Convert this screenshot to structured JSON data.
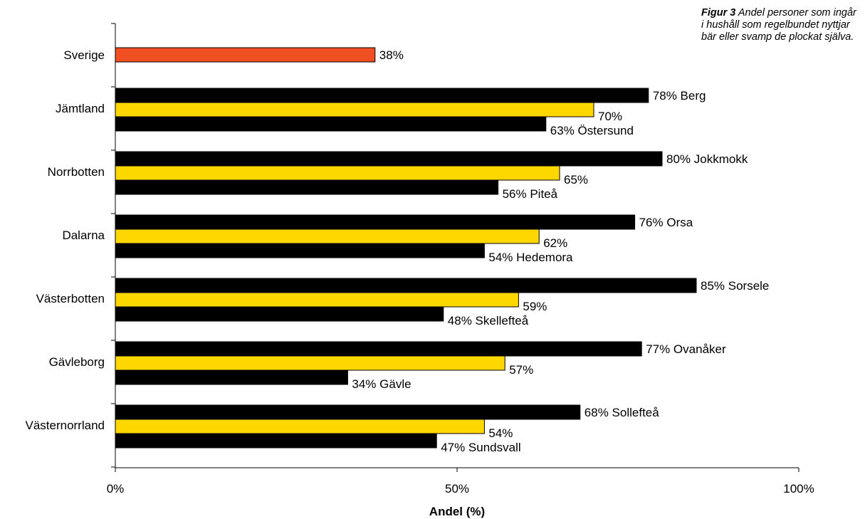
{
  "caption": {
    "label": "Figur 3",
    "text": "Andel personer som ingår i hushåll som regelbundet nyttjar bär eller svamp de plockat själva."
  },
  "chart_data": {
    "type": "bar",
    "orientation": "horizontal",
    "xlabel": "Andel (%)",
    "xlim": [
      0,
      100
    ],
    "x_ticks": [
      "0%",
      "50%",
      "100%"
    ],
    "colors": {
      "national": "#f04e23",
      "max": "#000000",
      "mean": "#ffd700",
      "min": "#000000"
    },
    "national": {
      "category": "Sverige",
      "value": 38,
      "label": "38%"
    },
    "groups": [
      {
        "category": "Jämtland",
        "bars": [
          {
            "value": 78,
            "label": "78% Berg"
          },
          {
            "value": 70,
            "label": "70%"
          },
          {
            "value": 63,
            "label": "63% Östersund"
          }
        ]
      },
      {
        "category": "Norrbotten",
        "bars": [
          {
            "value": 80,
            "label": "80% Jokkmokk"
          },
          {
            "value": 65,
            "label": "65%"
          },
          {
            "value": 56,
            "label": "56% Piteå"
          }
        ]
      },
      {
        "category": "Dalarna",
        "bars": [
          {
            "value": 76,
            "label": "76% Orsa"
          },
          {
            "value": 62,
            "label": "62%"
          },
          {
            "value": 54,
            "label": "54% Hedemora"
          }
        ]
      },
      {
        "category": "Västerbotten",
        "bars": [
          {
            "value": 85,
            "label": "85% Sorsele"
          },
          {
            "value": 59,
            "label": "59%"
          },
          {
            "value": 48,
            "label": "48% Skellefteå"
          }
        ]
      },
      {
        "category": "Gävleborg",
        "bars": [
          {
            "value": 77,
            "label": "77% Ovanåker"
          },
          {
            "value": 57,
            "label": "57%"
          },
          {
            "value": 34,
            "label": "34% Gävle"
          }
        ]
      },
      {
        "category": "Västernorrland",
        "bars": [
          {
            "value": 68,
            "label": "68% Sollefteå"
          },
          {
            "value": 54,
            "label": "54%"
          },
          {
            "value": 47,
            "label": "47% Sundsvall"
          }
        ]
      }
    ]
  }
}
